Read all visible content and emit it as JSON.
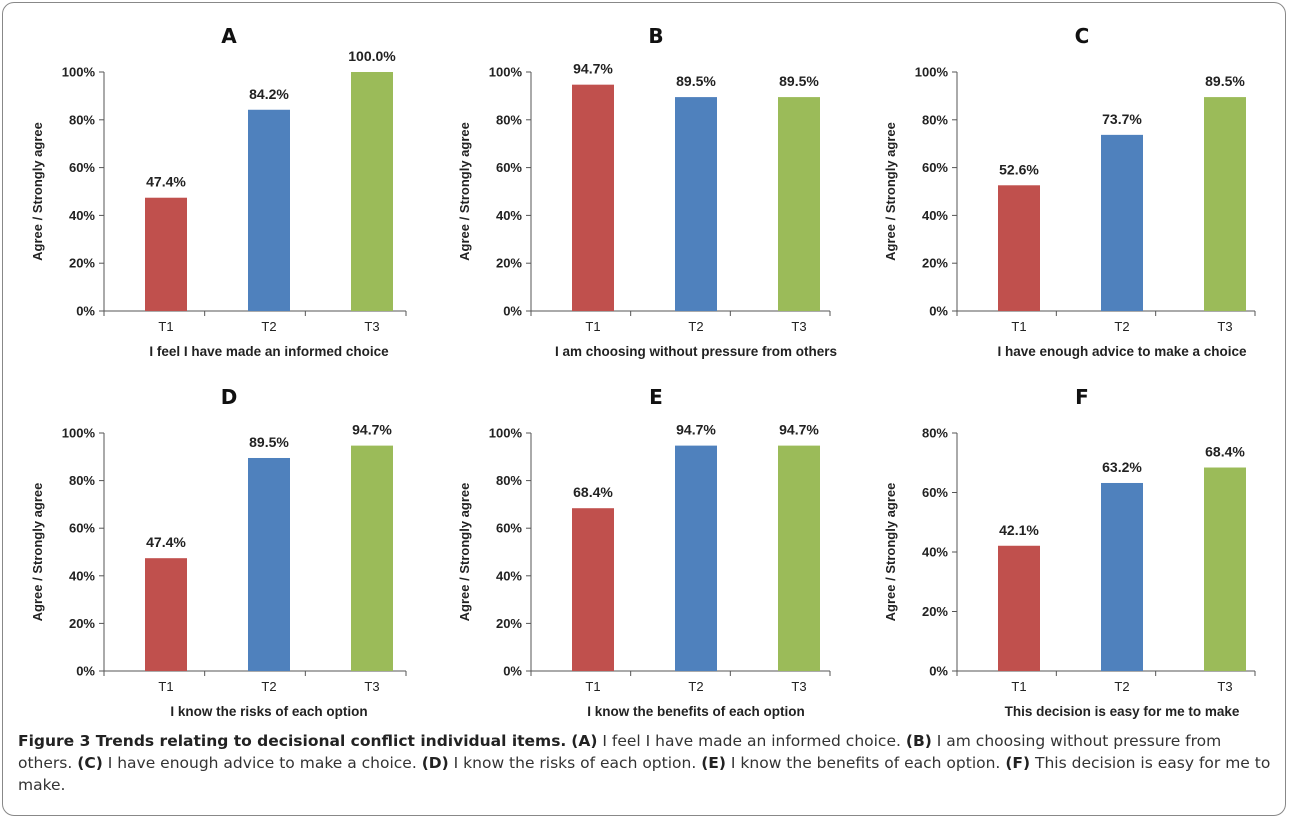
{
  "chart_data": [
    {
      "panel": "A",
      "type": "bar",
      "categories": [
        "T1",
        "T2",
        "T3"
      ],
      "values": [
        47.4,
        84.2,
        100.0
      ],
      "labels": [
        "47.4%",
        "84.2%",
        "100.0%"
      ],
      "ylabel": "Agree / Strongly agree",
      "xlabel": "I feel I have made an informed choice",
      "ylim": [
        0,
        100
      ],
      "yticks": [
        "0%",
        "20%",
        "40%",
        "60%",
        "80%",
        "100%"
      ]
    },
    {
      "panel": "B",
      "type": "bar",
      "categories": [
        "T1",
        "T2",
        "T3"
      ],
      "values": [
        94.7,
        89.5,
        89.5
      ],
      "labels": [
        "94.7%",
        "89.5%",
        "89.5%"
      ],
      "ylabel": "Agree / Strongly agree",
      "xlabel": "I am choosing without pressure from others",
      "ylim": [
        0,
        100
      ],
      "yticks": [
        "0%",
        "20%",
        "40%",
        "60%",
        "80%",
        "100%"
      ]
    },
    {
      "panel": "C",
      "type": "bar",
      "categories": [
        "T1",
        "T2",
        "T3"
      ],
      "values": [
        52.6,
        73.7,
        89.5
      ],
      "labels": [
        "52.6%",
        "73.7%",
        "89.5%"
      ],
      "ylabel": "Agree / Strongly agree",
      "xlabel": "I have enough advice to make a choice",
      "ylim": [
        0,
        100
      ],
      "yticks": [
        "0%",
        "20%",
        "40%",
        "60%",
        "80%",
        "100%"
      ]
    },
    {
      "panel": "D",
      "type": "bar",
      "categories": [
        "T1",
        "T2",
        "T3"
      ],
      "values": [
        47.4,
        89.5,
        94.7
      ],
      "labels": [
        "47.4%",
        "89.5%",
        "94.7%"
      ],
      "ylabel": "Agree / Strongly agree",
      "xlabel": "I know the risks of each option",
      "ylim": [
        0,
        100
      ],
      "yticks": [
        "0%",
        "20%",
        "40%",
        "60%",
        "80%",
        "100%"
      ]
    },
    {
      "panel": "E",
      "type": "bar",
      "categories": [
        "T1",
        "T2",
        "T3"
      ],
      "values": [
        68.4,
        94.7,
        94.7
      ],
      "labels": [
        "68.4%",
        "94.7%",
        "94.7%"
      ],
      "ylabel": "Agree / Strongly agree",
      "xlabel": "I know the benefits of each option",
      "ylim": [
        0,
        100
      ],
      "yticks": [
        "0%",
        "20%",
        "40%",
        "60%",
        "80%",
        "100%"
      ]
    },
    {
      "panel": "F",
      "type": "bar",
      "categories": [
        "T1",
        "T2",
        "T3"
      ],
      "values": [
        42.1,
        63.2,
        68.4
      ],
      "labels": [
        "42.1%",
        "63.2%",
        "68.4%"
      ],
      "ylabel": "Agree / Strongly agree",
      "xlabel": "This decision is easy for me to make",
      "ylim": [
        0,
        80
      ],
      "yticks": [
        "0%",
        "20%",
        "40%",
        "60%",
        "80%"
      ]
    }
  ],
  "colors": {
    "T1": "#c0504d",
    "T2": "#4f81bd",
    "T3": "#9bbb59"
  },
  "caption": {
    "title": "Figure 3 Trends relating to decisional conflict individual items.",
    "items": [
      {
        "label": "(A)",
        "text": "I feel I have made an informed choice."
      },
      {
        "label": "(B)",
        "text": "I am choosing without pressure from others."
      },
      {
        "label": "(C)",
        "text": "I have enough advice to make a choice."
      },
      {
        "label": "(D)",
        "text": "I know the risks of each option."
      },
      {
        "label": "(E)",
        "text": "I know the benefits of each option."
      },
      {
        "label": "(F)",
        "text": "This decision is easy for me to make."
      }
    ]
  }
}
